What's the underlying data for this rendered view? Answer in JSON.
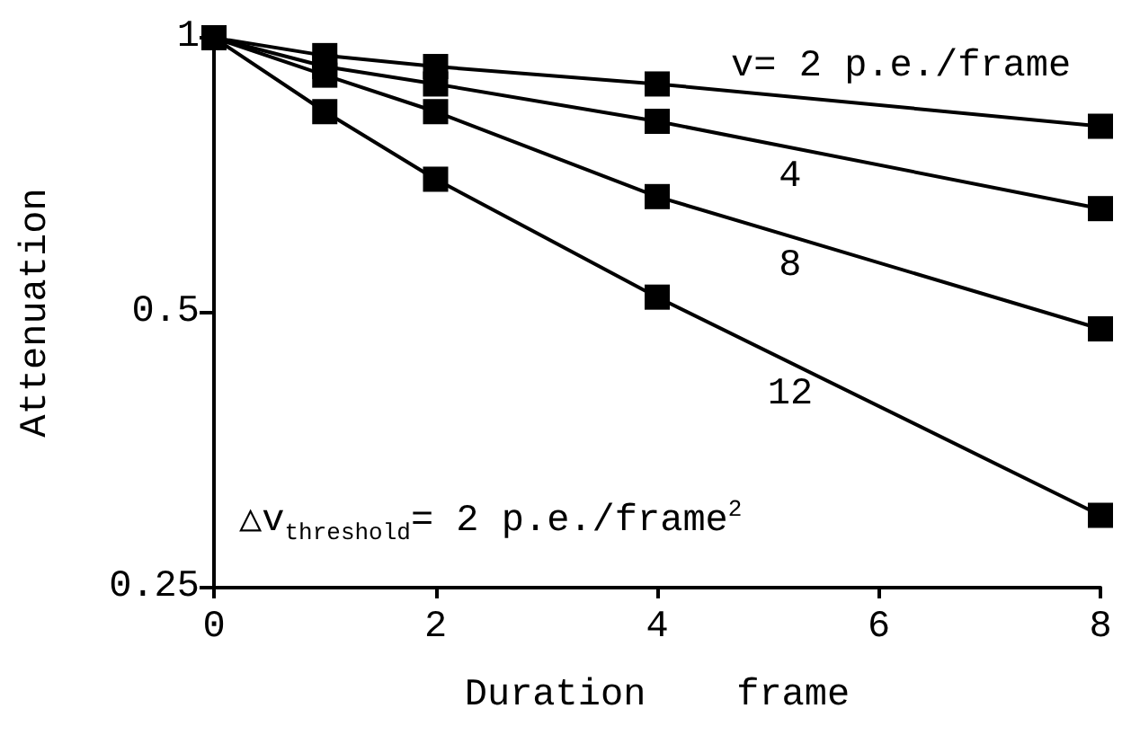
{
  "chart_data": {
    "type": "line",
    "xlabel": "Duration    frame",
    "ylabel": "Attenuation",
    "x": [
      0,
      1,
      2,
      4,
      8
    ],
    "series": [
      {
        "name": "v= 2 p.e./frame",
        "color": "#000000",
        "values": [
          1,
          0.956,
          0.93,
          0.89,
          0.8
        ]
      },
      {
        "name": "4",
        "color": "#000000",
        "values": [
          1,
          0.93,
          0.89,
          0.81,
          0.65
        ]
      },
      {
        "name": "8",
        "color": "#000000",
        "values": [
          1,
          0.91,
          0.83,
          0.67,
          0.48
        ]
      },
      {
        "name": "12",
        "color": "#000000",
        "values": [
          1,
          0.83,
          0.7,
          0.52,
          0.3
        ]
      }
    ],
    "annotations": [
      "△v$_{threshold}$= 2 p.e./frame$^{2}$"
    ],
    "xlim": [
      0,
      8
    ],
    "xticks": [
      0,
      2,
      4,
      6,
      8
    ],
    "ylim": [
      0.25,
      1
    ],
    "yticks": [
      0.25,
      0.5,
      1
    ],
    "log": "y",
    "grid": false,
    "legend": false,
    "marker": "square",
    "line_style": "solid"
  }
}
